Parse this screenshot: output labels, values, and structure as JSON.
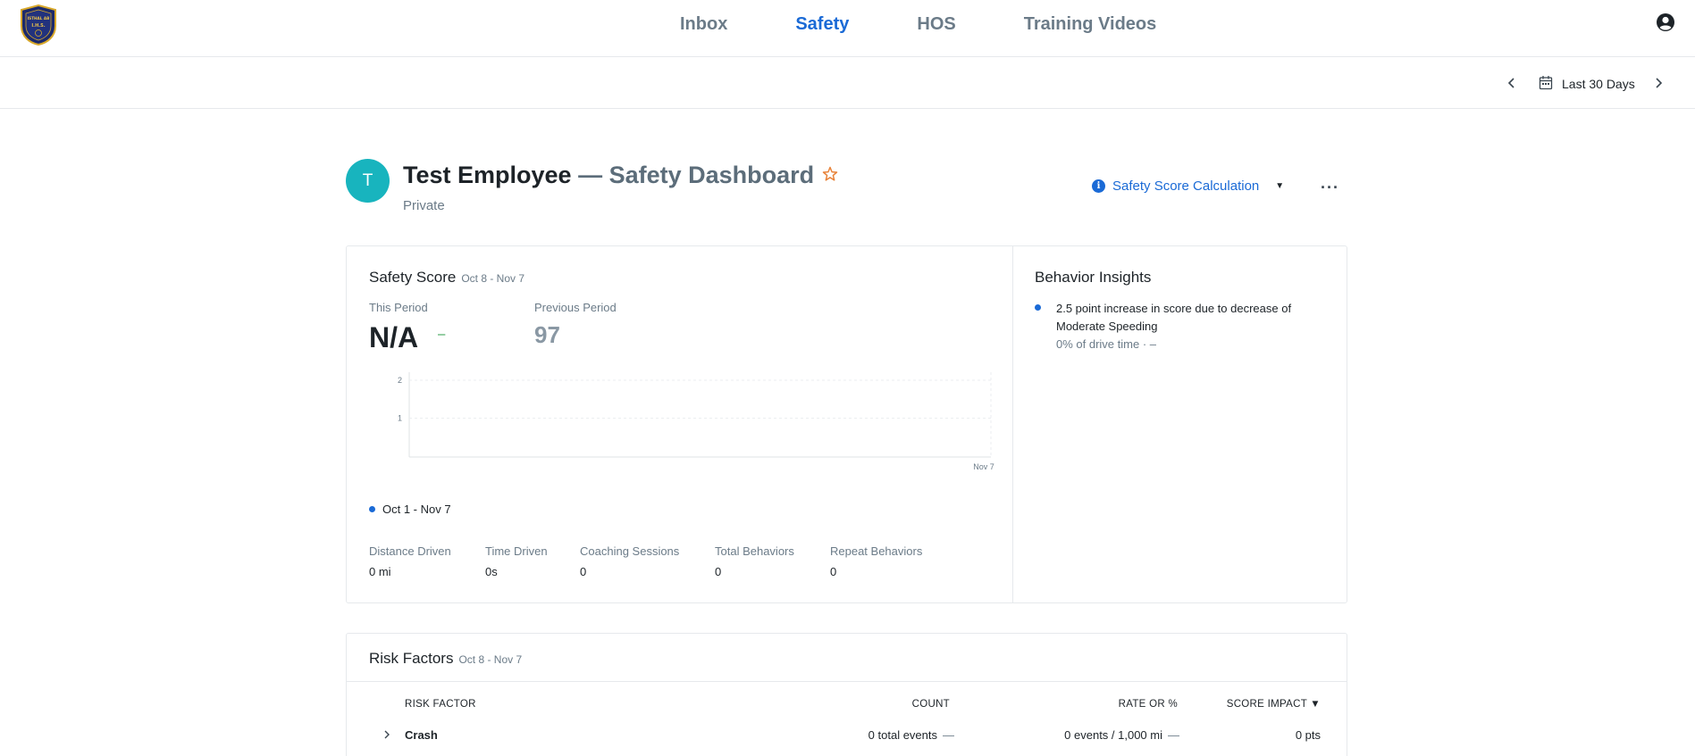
{
  "nav": {
    "logo_text": "ISTHAL AB",
    "tabs": [
      {
        "label": "Inbox",
        "active": false
      },
      {
        "label": "Safety",
        "active": true
      },
      {
        "label": "HOS",
        "active": false
      },
      {
        "label": "Training Videos",
        "active": false
      }
    ],
    "user_icon": "account-circle-icon"
  },
  "toolbar": {
    "date_range": "Last 30 Days"
  },
  "header": {
    "avatar_initial": "T",
    "employee_name": "Test Employee",
    "separator": "—",
    "dashboard_title": "Safety Dashboard",
    "privacy": "Private",
    "calc_label": "Safety Score Calculation",
    "more": "···"
  },
  "safety_score": {
    "title": "Safety Score",
    "range": "Oct 8 - Nov 7",
    "this_period_label": "This Period",
    "this_period_value": "N/A",
    "this_period_delta": "–",
    "previous_period_label": "Previous Period",
    "previous_period_value": "97",
    "legend": "Oct 1 - Nov 7",
    "stats": [
      {
        "label": "Distance Driven",
        "value": "0 mi"
      },
      {
        "label": "Time Driven",
        "value": "0s"
      },
      {
        "label": "Coaching Sessions",
        "value": "0"
      },
      {
        "label": "Total Behaviors",
        "value": "0"
      },
      {
        "label": "Repeat Behaviors",
        "value": "0"
      }
    ]
  },
  "chart_data": {
    "type": "line",
    "y_ticks": [
      "2",
      "1"
    ],
    "x_ticks": [
      "Nov 7"
    ],
    "ylim": [
      0,
      2
    ],
    "series": [],
    "grid": true
  },
  "behavior_insights": {
    "title": "Behavior Insights",
    "items": [
      {
        "text": "2.5 point increase in score due to decrease of Moderate Speeding",
        "sub": "0% of drive time  ·  –"
      }
    ]
  },
  "risk_factors": {
    "title": "Risk Factors",
    "range": "Oct 8 - Nov 7",
    "columns": [
      "RISK FACTOR",
      "COUNT",
      "RATE OR %",
      "SCORE IMPACT ▼"
    ],
    "rows": [
      {
        "factor": "Crash",
        "count": "0 total events",
        "count_delta": "—",
        "rate": "0 events / 1,000 mi",
        "rate_delta": "—",
        "impact": "0 pts"
      }
    ]
  },
  "colors": {
    "accent": "#1a6ad6",
    "avatar": "#18b4be",
    "star": "#e8833a",
    "positive": "#2e9e4a"
  }
}
